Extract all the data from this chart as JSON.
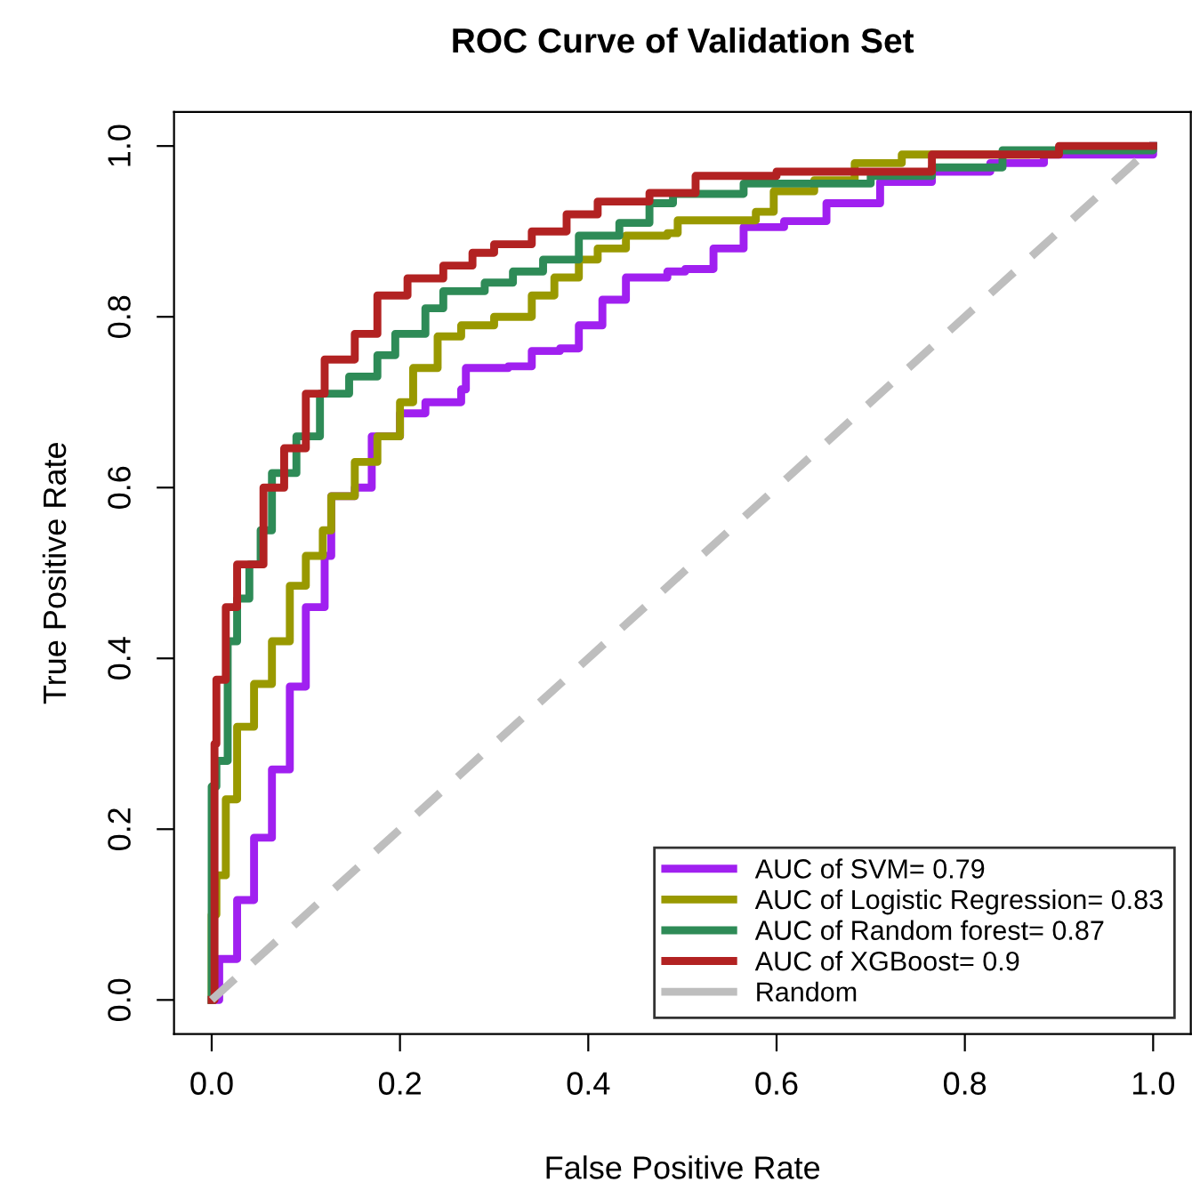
{
  "chart_data": {
    "type": "step",
    "title": "ROC Curve of Validation Set",
    "xlabel": "False Positive Rate",
    "ylabel": "True Positive Rate",
    "xlim": [
      -0.04,
      1.04
    ],
    "ylim": [
      -0.04,
      1.04
    ],
    "xticks": [
      {
        "value": 0,
        "label": "0.0"
      },
      0.2,
      0.4,
      0.6,
      0.8,
      {
        "value": 1,
        "label": "1.0"
      }
    ],
    "yticks": [
      {
        "value": 0,
        "label": "0.0"
      },
      0.2,
      0.4,
      0.6,
      0.8,
      {
        "value": 1,
        "label": "1.0"
      }
    ],
    "grid": false,
    "legend": "bottom right",
    "series": [
      {
        "name": "AUC of SVM= 0.79",
        "color": "#a020f0",
        "x": [
          0,
          0.008,
          0.027,
          0.045,
          0.064,
          0.083,
          0.1,
          0.12,
          0.127,
          0.152,
          0.17,
          0.2,
          0.227,
          0.265,
          0.27,
          0.315,
          0.34,
          0.37,
          0.39,
          0.415,
          0.44,
          0.484,
          0.503,
          0.533,
          0.565,
          0.608,
          0.653,
          0.71,
          0.765,
          0.827,
          0.884,
          1
        ],
        "values": [
          0,
          0.048,
          0.117,
          0.19,
          0.27,
          0.367,
          0.46,
          0.52,
          0.59,
          0.6,
          0.66,
          0.687,
          0.7,
          0.715,
          0.74,
          0.742,
          0.76,
          0.763,
          0.79,
          0.82,
          0.846,
          0.853,
          0.856,
          0.88,
          0.905,
          0.912,
          0.933,
          0.958,
          0.97,
          0.98,
          0.99,
          1
        ]
      },
      {
        "name": "AUC of Logistic Regression= 0.83",
        "color": "#999900",
        "x": [
          0,
          0,
          0.005,
          0.015,
          0.027,
          0.045,
          0.064,
          0.083,
          0.1,
          0.118,
          0.127,
          0.152,
          0.176,
          0.2,
          0.214,
          0.24,
          0.265,
          0.3,
          0.34,
          0.364,
          0.39,
          0.41,
          0.44,
          0.484,
          0.495,
          0.578,
          0.597,
          0.64,
          0.683,
          0.733,
          0.865
        ],
        "values": [
          0,
          0.1,
          0.146,
          0.235,
          0.32,
          0.37,
          0.42,
          0.485,
          0.52,
          0.55,
          0.59,
          0.63,
          0.66,
          0.7,
          0.74,
          0.777,
          0.79,
          0.8,
          0.825,
          0.846,
          0.867,
          0.88,
          0.895,
          0.898,
          0.913,
          0.923,
          0.947,
          0.96,
          0.98,
          0.99,
          0.99
        ]
      },
      {
        "name": "AUC of Random forest= 0.87",
        "color": "#2e8b57",
        "x": [
          0,
          0,
          0.005,
          0.017,
          0.027,
          0.04,
          0.052,
          0.064,
          0.09,
          0.115,
          0.146,
          0.176,
          0.195,
          0.227,
          0.246,
          0.29,
          0.32,
          0.352,
          0.39,
          0.433,
          0.465,
          0.49,
          0.565,
          0.7,
          0.765,
          0.84,
          0.99,
          1
        ],
        "values": [
          0,
          0.25,
          0.28,
          0.42,
          0.47,
          0.51,
          0.55,
          0.617,
          0.66,
          0.71,
          0.73,
          0.755,
          0.78,
          0.81,
          0.83,
          0.84,
          0.853,
          0.867,
          0.895,
          0.91,
          0.933,
          0.944,
          0.956,
          0.965,
          0.975,
          0.995,
          0.995,
          1
        ]
      },
      {
        "name": "AUC of XGBoost= 0.9",
        "color": "#b22222",
        "x": [
          0,
          0.003,
          0.005,
          0.015,
          0.027,
          0.055,
          0.077,
          0.1,
          0.12,
          0.152,
          0.176,
          0.208,
          0.246,
          0.277,
          0.3,
          0.34,
          0.377,
          0.41,
          0.465,
          0.514,
          0.6,
          0.765,
          0.9,
          1
        ],
        "values": [
          0,
          0.3,
          0.375,
          0.46,
          0.51,
          0.6,
          0.646,
          0.71,
          0.75,
          0.78,
          0.825,
          0.845,
          0.86,
          0.875,
          0.885,
          0.9,
          0.92,
          0.935,
          0.945,
          0.965,
          0.97,
          0.99,
          1,
          1
        ]
      },
      {
        "name": "Random",
        "type": "line",
        "line_style": "dashed",
        "color": "#bebebe",
        "x": [
          0,
          1
        ],
        "values": [
          0,
          1
        ]
      }
    ]
  }
}
